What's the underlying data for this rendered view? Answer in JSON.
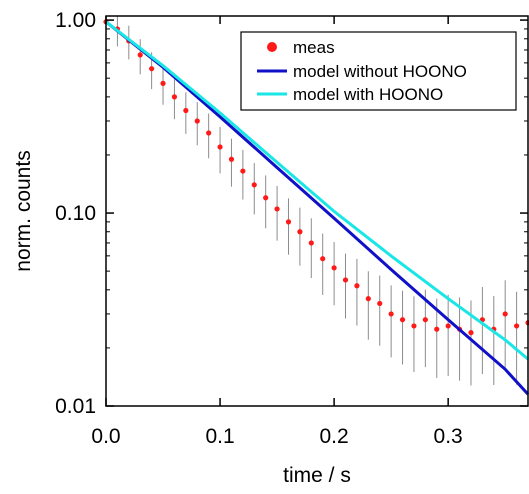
{
  "chart_data": {
    "type": "scatter",
    "title": "",
    "xlabel": "time / s",
    "ylabel": "norm. counts",
    "xlim": [
      0.0,
      0.37
    ],
    "ylim": [
      0.01,
      1.05
    ],
    "yscale": "log",
    "grid": false,
    "legend_position": "top-right",
    "x_ticks": [
      0.0,
      0.1,
      0.2,
      0.3
    ],
    "x_tick_labels": [
      "0.0",
      "0.1",
      "0.2",
      "0.3"
    ],
    "y_ticks": [
      0.01,
      0.1,
      1.0
    ],
    "y_tick_labels": [
      "0.01",
      "0.10",
      "1.00"
    ],
    "series": [
      {
        "name": "meas",
        "kind": "scatter-with-errorbars",
        "color": "#ff1a1a",
        "errorbar_color": "#8c8c8c",
        "x": [
          0.0,
          0.01,
          0.02,
          0.03,
          0.04,
          0.05,
          0.06,
          0.07,
          0.08,
          0.09,
          0.1,
          0.11,
          0.12,
          0.13,
          0.14,
          0.15,
          0.16,
          0.17,
          0.18,
          0.19,
          0.2,
          0.21,
          0.22,
          0.23,
          0.24,
          0.25,
          0.26,
          0.27,
          0.28,
          0.29,
          0.3,
          0.31,
          0.32,
          0.33,
          0.34,
          0.35,
          0.36,
          0.37
        ],
        "y": [
          0.98,
          0.9,
          0.78,
          0.66,
          0.56,
          0.47,
          0.4,
          0.34,
          0.3,
          0.26,
          0.22,
          0.19,
          0.165,
          0.14,
          0.12,
          0.105,
          0.09,
          0.08,
          0.07,
          0.058,
          0.052,
          0.045,
          0.042,
          0.036,
          0.034,
          0.03,
          0.028,
          0.026,
          0.028,
          0.025,
          0.026,
          0.025,
          0.024,
          0.028,
          0.025,
          0.03,
          0.026,
          0.027
        ]
      },
      {
        "name": "model without HOONO",
        "kind": "line",
        "color": "#1010c8",
        "x": [
          0.0,
          0.05,
          0.1,
          0.15,
          0.2,
          0.25,
          0.3,
          0.35,
          0.37
        ],
        "y": [
          0.98,
          0.57,
          0.315,
          0.172,
          0.094,
          0.051,
          0.028,
          0.0155,
          0.0115
        ]
      },
      {
        "name": "model with HOONO",
        "kind": "line",
        "color": "#1ae6e6",
        "x": [
          0.0,
          0.05,
          0.1,
          0.15,
          0.2,
          0.25,
          0.3,
          0.35,
          0.37
        ],
        "y": [
          0.98,
          0.58,
          0.33,
          0.183,
          0.102,
          0.06,
          0.036,
          0.022,
          0.0175
        ]
      }
    ]
  }
}
